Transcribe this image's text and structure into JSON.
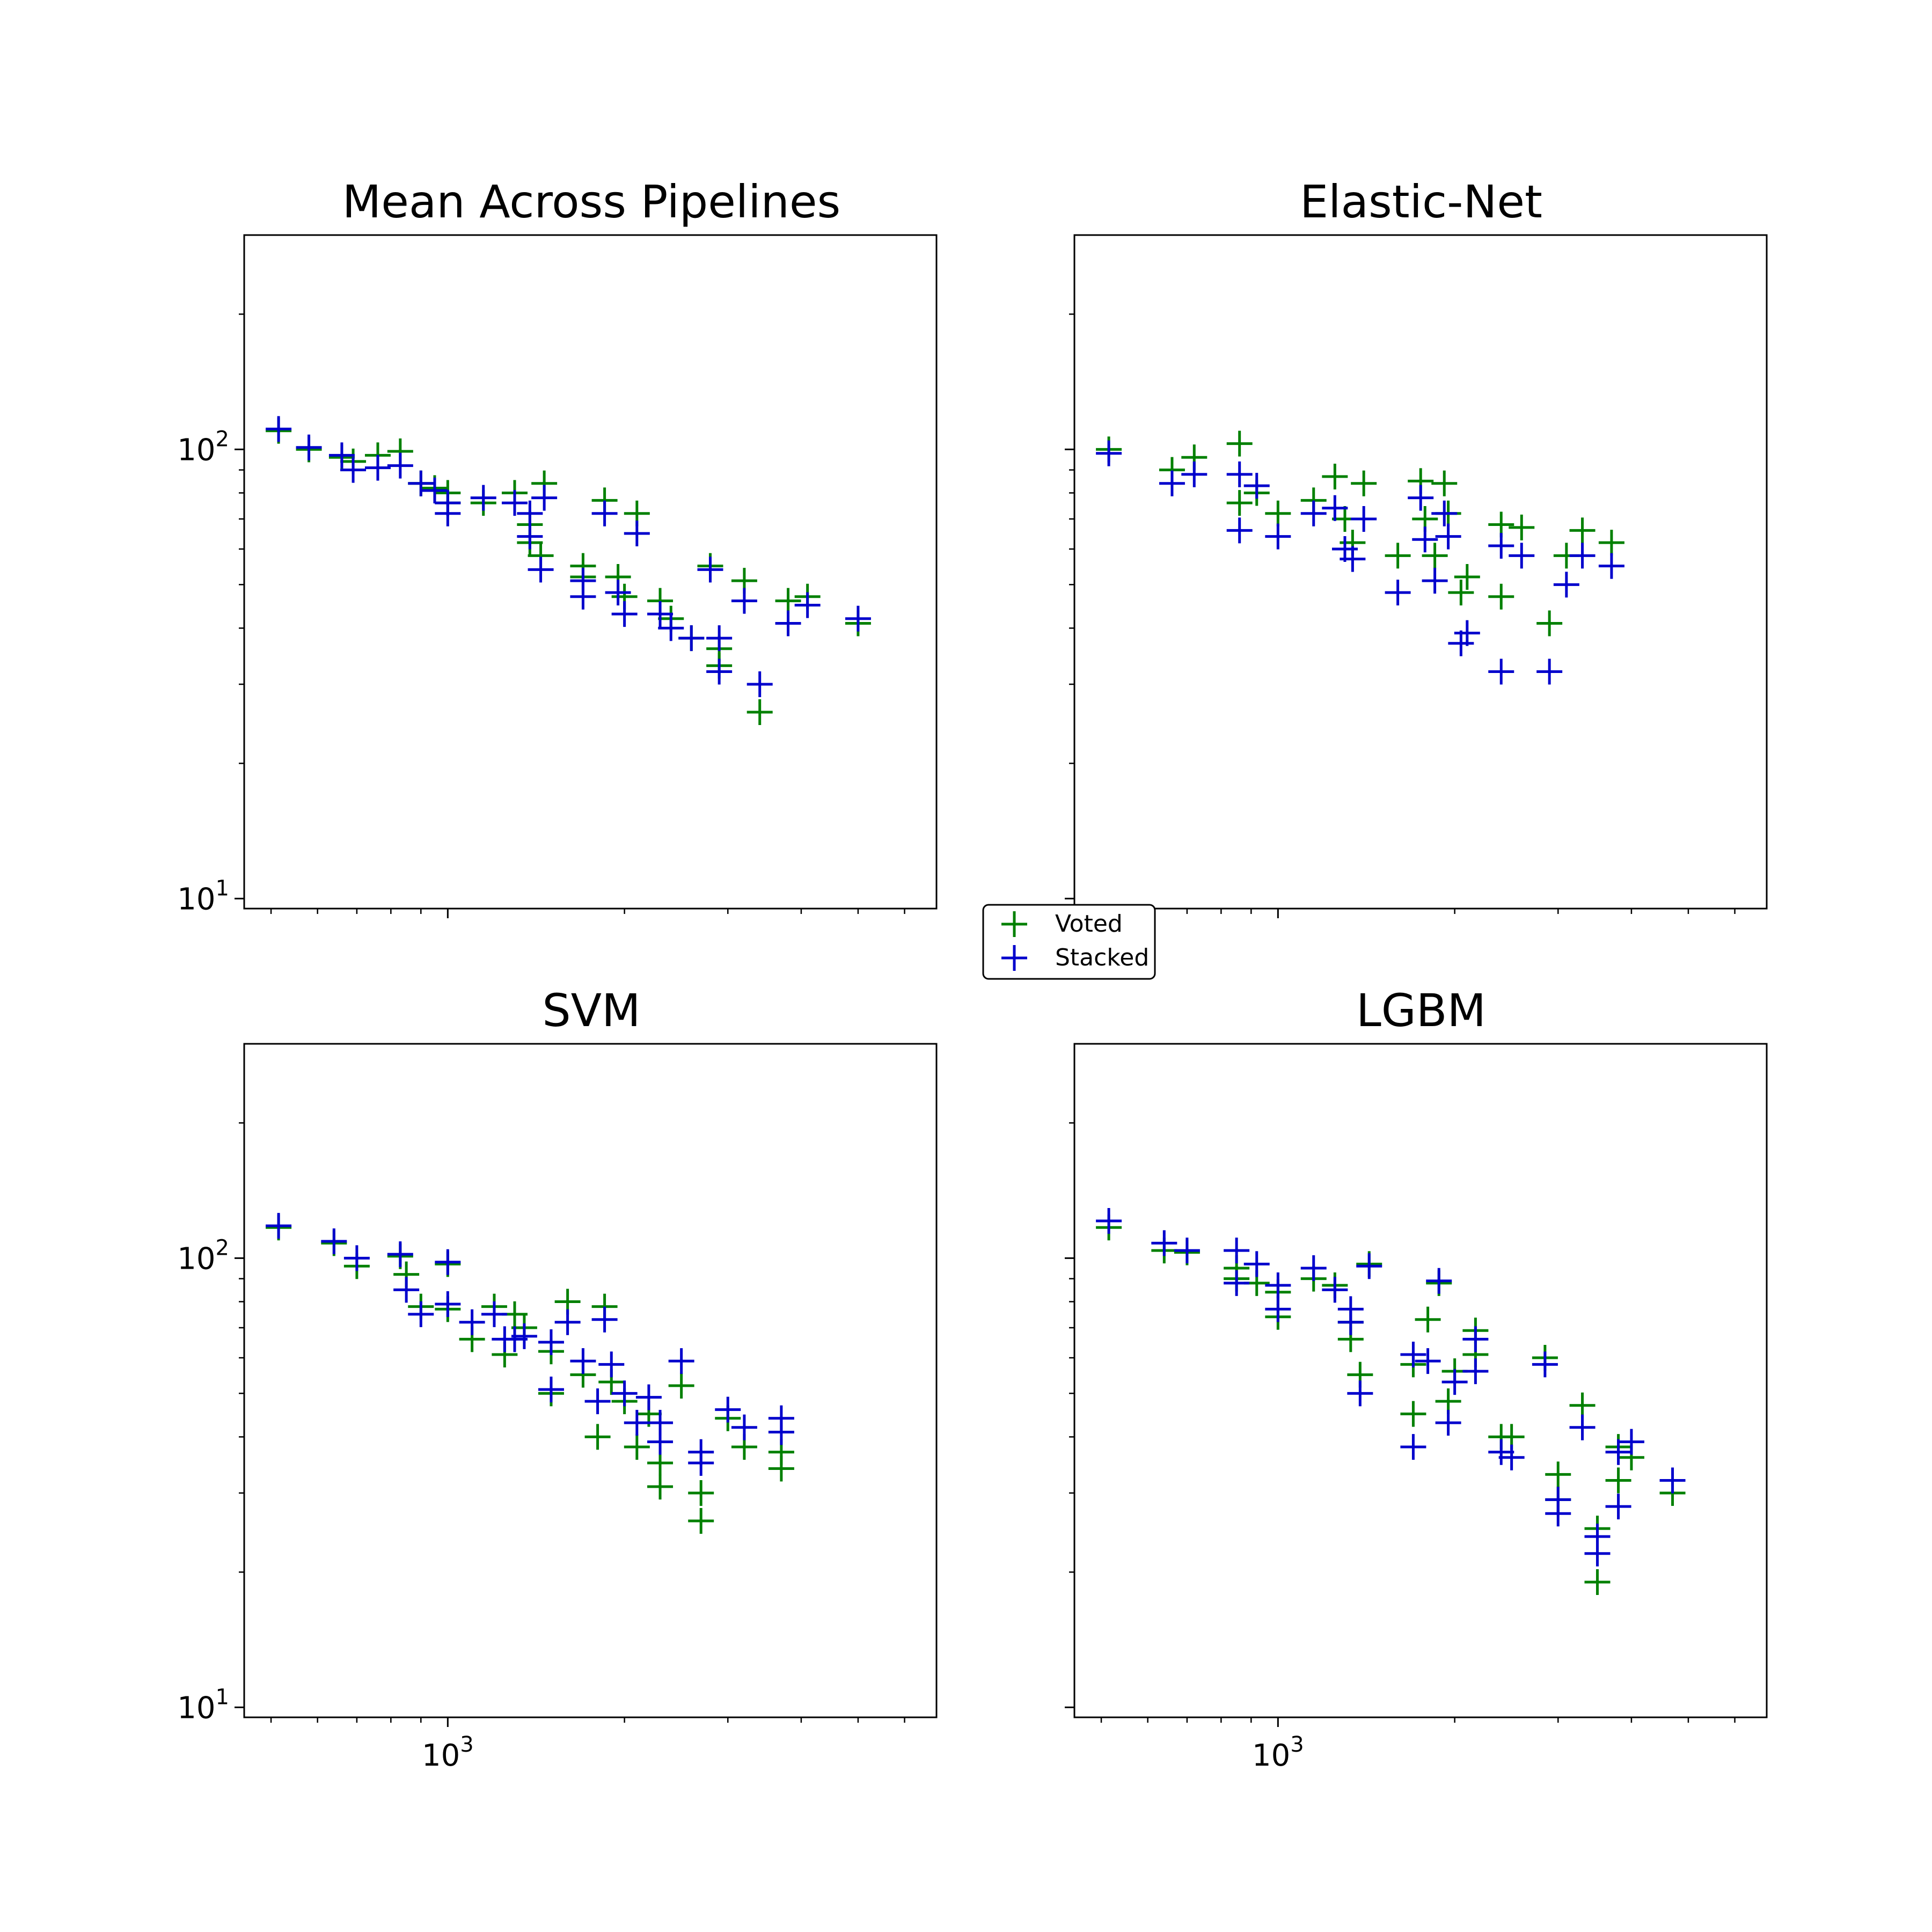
{
  "chart_data": [
    {
      "type": "scatter",
      "title": "Mean Across Pipelines",
      "xscale": "log",
      "yscale": "log",
      "xlim": [
        450,
        6800
      ],
      "ylim": [
        9.5,
        300
      ],
      "yticks": [
        {
          "value": 10,
          "label": "10^1"
        },
        {
          "value": 100,
          "label": "10^2"
        }
      ],
      "xticks": [],
      "marker": "plus",
      "series": [
        {
          "name": "Voted",
          "color": "#008000",
          "points": [
            [
              515,
              110
            ],
            [
              580,
              100
            ],
            [
              660,
              96
            ],
            [
              690,
              94
            ],
            [
              760,
              97
            ],
            [
              830,
              99
            ],
            [
              900,
              84
            ],
            [
              950,
              82
            ],
            [
              1000,
              80
            ],
            [
              1000,
              76
            ],
            [
              1150,
              76
            ],
            [
              1300,
              80
            ],
            [
              1380,
              68
            ],
            [
              1380,
              62
            ],
            [
              1440,
              58
            ],
            [
              1460,
              84
            ],
            [
              1700,
              55
            ],
            [
              1700,
              52
            ],
            [
              1850,
              77
            ],
            [
              1950,
              52
            ],
            [
              2000,
              47
            ],
            [
              2100,
              72
            ],
            [
              2300,
              46
            ],
            [
              2400,
              42
            ],
            [
              2600,
              38
            ],
            [
              2800,
              55
            ],
            [
              2900,
              36
            ],
            [
              2900,
              33
            ],
            [
              3200,
              51
            ],
            [
              3400,
              26
            ],
            [
              3800,
              46
            ],
            [
              4100,
              47
            ],
            [
              5000,
              41
            ]
          ]
        },
        {
          "name": "Stacked",
          "color": "#0000cc",
          "points": [
            [
              515,
              111
            ],
            [
              580,
              101
            ],
            [
              660,
              97
            ],
            [
              690,
              90
            ],
            [
              760,
              91
            ],
            [
              830,
              92
            ],
            [
              900,
              84
            ],
            [
              950,
              81
            ],
            [
              1000,
              76
            ],
            [
              1000,
              72
            ],
            [
              1150,
              78
            ],
            [
              1300,
              76
            ],
            [
              1380,
              72
            ],
            [
              1380,
              64
            ],
            [
              1440,
              54
            ],
            [
              1460,
              78
            ],
            [
              1700,
              51
            ],
            [
              1700,
              47
            ],
            [
              1850,
              72
            ],
            [
              1950,
              48
            ],
            [
              2000,
              43
            ],
            [
              2100,
              65
            ],
            [
              2300,
              43
            ],
            [
              2400,
              40
            ],
            [
              2600,
              38
            ],
            [
              2800,
              54
            ],
            [
              2900,
              38
            ],
            [
              2900,
              32
            ],
            [
              3200,
              46
            ],
            [
              3400,
              30
            ],
            [
              3800,
              41
            ],
            [
              4100,
              45
            ],
            [
              5000,
              42
            ]
          ]
        }
      ]
    },
    {
      "type": "scatter",
      "title": "Elastic-Net",
      "xscale": "log",
      "yscale": "log",
      "xlim": [
        450,
        6800
      ],
      "ylim": [
        9.5,
        300
      ],
      "yticks": [],
      "xticks": [],
      "marker": "plus",
      "series": [
        {
          "name": "Voted",
          "color": "#008000",
          "points": [
            [
              515,
              100
            ],
            [
              660,
              90
            ],
            [
              720,
              96
            ],
            [
              860,
              103
            ],
            [
              860,
              76
            ],
            [
              920,
              80
            ],
            [
              1000,
              72
            ],
            [
              1150,
              77
            ],
            [
              1250,
              87
            ],
            [
              1300,
              70
            ],
            [
              1340,
              62
            ],
            [
              1400,
              84
            ],
            [
              1600,
              58
            ],
            [
              1750,
              85
            ],
            [
              1780,
              70
            ],
            [
              1850,
              58
            ],
            [
              1920,
              84
            ],
            [
              1950,
              72
            ],
            [
              2050,
              48
            ],
            [
              2100,
              52
            ],
            [
              2400,
              68
            ],
            [
              2400,
              47
            ],
            [
              2600,
              67
            ],
            [
              2900,
              41
            ],
            [
              3100,
              58
            ],
            [
              3300,
              66
            ],
            [
              3700,
              62
            ]
          ]
        },
        {
          "name": "Stacked",
          "color": "#0000cc",
          "points": [
            [
              515,
              98
            ],
            [
              660,
              84
            ],
            [
              720,
              88
            ],
            [
              860,
              88
            ],
            [
              860,
              66
            ],
            [
              920,
              83
            ],
            [
              1000,
              64
            ],
            [
              1150,
              72
            ],
            [
              1250,
              74
            ],
            [
              1300,
              60
            ],
            [
              1340,
              57
            ],
            [
              1400,
              70
            ],
            [
              1600,
              48
            ],
            [
              1750,
              78
            ],
            [
              1780,
              63
            ],
            [
              1850,
              51
            ],
            [
              1920,
              72
            ],
            [
              1950,
              64
            ],
            [
              2050,
              37
            ],
            [
              2100,
              39
            ],
            [
              2400,
              61
            ],
            [
              2400,
              32
            ],
            [
              2600,
              58
            ],
            [
              2900,
              32
            ],
            [
              3100,
              50
            ],
            [
              3300,
              58
            ],
            [
              3700,
              55
            ]
          ]
        }
      ]
    },
    {
      "type": "scatter",
      "title": "SVM",
      "xscale": "log",
      "yscale": "log",
      "xlim": [
        450,
        6800
      ],
      "ylim": [
        9.5,
        300
      ],
      "yticks": [
        {
          "value": 10,
          "label": "10^1"
        },
        {
          "value": 100,
          "label": "10^2"
        }
      ],
      "xticks": [
        {
          "value": 1000,
          "label": "10^3"
        }
      ],
      "marker": "plus",
      "series": [
        {
          "name": "Voted",
          "color": "#008000",
          "points": [
            [
              515,
              117
            ],
            [
              640,
              108
            ],
            [
              700,
              96
            ],
            [
              830,
              101
            ],
            [
              850,
              92
            ],
            [
              900,
              78
            ],
            [
              1000,
              97
            ],
            [
              1000,
              77
            ],
            [
              1100,
              66
            ],
            [
              1200,
              78
            ],
            [
              1250,
              61
            ],
            [
              1300,
              75
            ],
            [
              1350,
              70
            ],
            [
              1500,
              62
            ],
            [
              1500,
              50
            ],
            [
              1600,
              80
            ],
            [
              1700,
              55
            ],
            [
              1800,
              40
            ],
            [
              1850,
              78
            ],
            [
              1900,
              53
            ],
            [
              2000,
              48
            ],
            [
              2100,
              38
            ],
            [
              2200,
              45
            ],
            [
              2300,
              35
            ],
            [
              2300,
              31
            ],
            [
              2500,
              52
            ],
            [
              2700,
              30
            ],
            [
              2700,
              26
            ],
            [
              3000,
              44
            ],
            [
              3200,
              38
            ],
            [
              3700,
              37
            ],
            [
              3700,
              34
            ]
          ]
        },
        {
          "name": "Stacked",
          "color": "#0000cc",
          "points": [
            [
              515,
              118
            ],
            [
              640,
              109
            ],
            [
              700,
              100
            ],
            [
              830,
              102
            ],
            [
              850,
              85
            ],
            [
              900,
              75
            ],
            [
              1000,
              98
            ],
            [
              1000,
              79
            ],
            [
              1100,
              72
            ],
            [
              1200,
              75
            ],
            [
              1250,
              66
            ],
            [
              1300,
              66
            ],
            [
              1350,
              67
            ],
            [
              1500,
              65
            ],
            [
              1500,
              51
            ],
            [
              1600,
              72
            ],
            [
              1700,
              59
            ],
            [
              1800,
              48
            ],
            [
              1850,
              73
            ],
            [
              1900,
              58
            ],
            [
              2000,
              50
            ],
            [
              2100,
              43
            ],
            [
              2200,
              49
            ],
            [
              2300,
              43
            ],
            [
              2300,
              39
            ],
            [
              2500,
              59
            ],
            [
              2700,
              37
            ],
            [
              2700,
              35
            ],
            [
              3000,
              46
            ],
            [
              3200,
              42
            ],
            [
              3700,
              44
            ],
            [
              3700,
              41
            ]
          ]
        }
      ]
    },
    {
      "type": "scatter",
      "title": "LGBM",
      "xscale": "log",
      "yscale": "log",
      "xlim": [
        450,
        6800
      ],
      "ylim": [
        9.5,
        300
      ],
      "yticks": [],
      "xticks": [
        {
          "value": 1000,
          "label": "10^3"
        }
      ],
      "marker": "plus",
      "series": [
        {
          "name": "Voted",
          "color": "#008000",
          "points": [
            [
              515,
              117
            ],
            [
              640,
              104
            ],
            [
              700,
              103
            ],
            [
              850,
              95
            ],
            [
              850,
              90
            ],
            [
              920,
              88
            ],
            [
              1000,
              84
            ],
            [
              1000,
              74
            ],
            [
              1150,
              90
            ],
            [
              1250,
              87
            ],
            [
              1330,
              72
            ],
            [
              1330,
              66
            ],
            [
              1380,
              55
            ],
            [
              1430,
              97
            ],
            [
              1700,
              58
            ],
            [
              1700,
              45
            ],
            [
              1800,
              73
            ],
            [
              1880,
              88
            ],
            [
              1950,
              48
            ],
            [
              2000,
              56
            ],
            [
              2170,
              69
            ],
            [
              2170,
              61
            ],
            [
              2400,
              40
            ],
            [
              2500,
              40
            ],
            [
              2850,
              60
            ],
            [
              3000,
              33
            ],
            [
              3000,
              29
            ],
            [
              3300,
              47
            ],
            [
              3500,
              25
            ],
            [
              3500,
              19
            ],
            [
              3800,
              38
            ],
            [
              3800,
              32
            ],
            [
              4000,
              36
            ],
            [
              4700,
              30
            ]
          ]
        },
        {
          "name": "Stacked",
          "color": "#0000cc",
          "points": [
            [
              515,
              121
            ],
            [
              640,
              108
            ],
            [
              700,
              104
            ],
            [
              850,
              104
            ],
            [
              850,
              88
            ],
            [
              920,
              97
            ],
            [
              1000,
              87
            ],
            [
              1000,
              77
            ],
            [
              1150,
              95
            ],
            [
              1250,
              85
            ],
            [
              1330,
              77
            ],
            [
              1330,
              72
            ],
            [
              1380,
              50
            ],
            [
              1430,
              96
            ],
            [
              1700,
              61
            ],
            [
              1700,
              38
            ],
            [
              1800,
              59
            ],
            [
              1880,
              89
            ],
            [
              1950,
              43
            ],
            [
              2000,
              53
            ],
            [
              2170,
              66
            ],
            [
              2170,
              56
            ],
            [
              2400,
              37
            ],
            [
              2500,
              36
            ],
            [
              2850,
              58
            ],
            [
              3000,
              29
            ],
            [
              3000,
              27
            ],
            [
              3300,
              42
            ],
            [
              3500,
              22
            ],
            [
              3500,
              24
            ],
            [
              3800,
              28
            ],
            [
              3800,
              37
            ],
            [
              4000,
              39
            ],
            [
              4700,
              32
            ]
          ]
        }
      ]
    }
  ],
  "legend": {
    "placement": "center",
    "entries": [
      {
        "label": "Voted",
        "color": "#008000"
      },
      {
        "label": "Stacked",
        "color": "#0000cc"
      }
    ]
  }
}
